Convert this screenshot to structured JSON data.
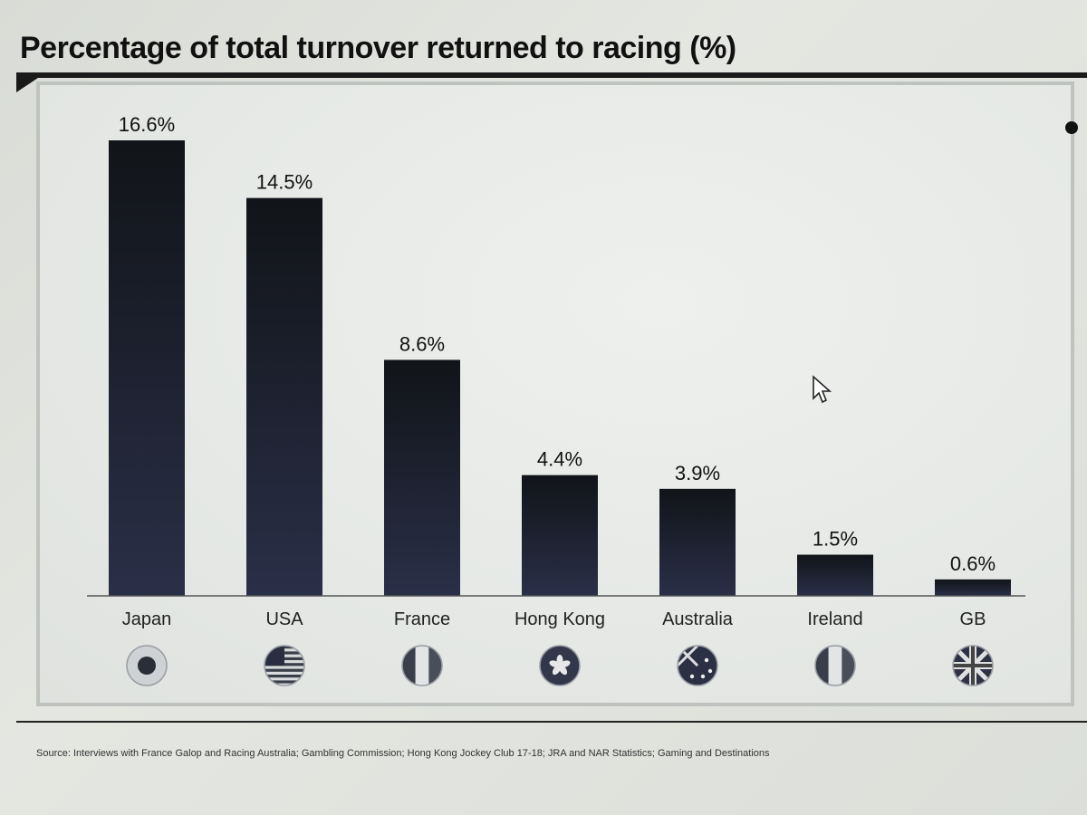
{
  "chart_data": {
    "type": "bar",
    "title": "Percentage of total turnover returned to racing (%)",
    "categories": [
      "Japan",
      "USA",
      "France",
      "Hong Kong",
      "Australia",
      "Ireland",
      "GB"
    ],
    "values": [
      16.6,
      14.5,
      8.6,
      4.4,
      3.9,
      1.5,
      0.6
    ],
    "value_labels": [
      "16.6%",
      "14.5%",
      "8.6%",
      "4.4%",
      "3.9%",
      "1.5%",
      "0.6%"
    ],
    "flag_icons": [
      "japan-flag-icon",
      "usa-flag-icon",
      "france-flag-icon",
      "hong-kong-flag-icon",
      "australia-flag-icon",
      "ireland-flag-icon",
      "gb-flag-icon"
    ],
    "bar_color": "#1d2130",
    "xlabel": "",
    "ylabel": "",
    "ylim": [
      0,
      16.6
    ],
    "grid": false,
    "legend": "none"
  },
  "source": "Source: Interviews with France Galop and Racing Australia; Gambling Commission; Hong Kong Jockey Club 17-18; JRA and NAR Statistics; Gaming and Destinations"
}
